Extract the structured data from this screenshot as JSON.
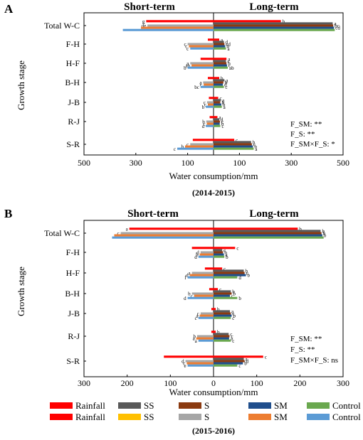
{
  "chart_data": [
    {
      "type": "bar",
      "panel_label": "A",
      "title": "(2014-2015)",
      "left_header": "Short-term",
      "right_header": "Long-term",
      "ylabel": "Growth stage",
      "xlabel": "Water consumption/mm",
      "x_tick_labels": [
        "500",
        "300",
        "100",
        "100",
        "300",
        "500"
      ],
      "xlim": [
        -500,
        500
      ],
      "categories": [
        "Total W-C",
        "F-H",
        "H-F",
        "B-H",
        "J-B",
        "R-J",
        "S-R"
      ],
      "side_order": [
        "Rainfall",
        "SS",
        "S",
        "SM",
        "Control"
      ],
      "series": [
        {
          "name": "Rainfall",
          "color": "#ff0000",
          "short": [
            260,
            22,
            50,
            22,
            18,
            15,
            80
          ],
          "long": [
            260,
            22,
            50,
            22,
            18,
            15,
            80
          ]
        },
        {
          "name": "SS",
          "short": [
            0,
            0,
            0,
            0,
            0,
            0,
            0
          ],
          "long": [
            460,
            40,
            48,
            42,
            28,
            22,
            145
          ]
        },
        {
          "name": "S",
          "short": [
            255,
            100,
            90,
            40,
            25,
            28,
            90
          ],
          "long": [
            462,
            42,
            50,
            38,
            26,
            25,
            148
          ]
        },
        {
          "name": "SM",
          "short": [
            280,
            95,
            85,
            38,
            22,
            26,
            110
          ],
          "long": [
            465,
            45,
            52,
            36,
            30,
            24,
            152
          ]
        },
        {
          "name": "Control",
          "short": [
            350,
            90,
            100,
            50,
            30,
            30,
            140
          ],
          "long": [
            468,
            48,
            55,
            40,
            32,
            26,
            155
          ]
        }
      ],
      "sig_letters": {
        "short": [
          [
            "g",
            "ef",
            "de",
            "",
            ""
          ],
          [
            "",
            "a",
            "c",
            "c",
            "c"
          ],
          [
            "",
            "b",
            "a",
            "ab",
            "b"
          ],
          [
            "",
            "b",
            "a",
            "c",
            "bc"
          ],
          [
            "",
            "a",
            "c",
            "c",
            "b"
          ],
          [
            "",
            "a",
            "b",
            "c",
            "d"
          ],
          [
            "",
            "e",
            "c",
            "b",
            "c"
          ]
        ],
        "long": [
          [
            "b",
            "a",
            "bc",
            "cd",
            ""
          ],
          [
            "a",
            "d",
            "cd",
            "b",
            "a"
          ],
          [
            "a",
            "c",
            "b",
            "c",
            "ab"
          ],
          [
            "b",
            "a",
            "b",
            "d",
            "c"
          ],
          [
            "c",
            "a",
            "b",
            "b",
            "a"
          ],
          [
            "a",
            "d",
            "c",
            "b",
            "c"
          ],
          [
            "c",
            "b",
            "c",
            "b",
            "a"
          ]
        ]
      },
      "stats": [
        "F_SM: **",
        "F_S: **",
        "F_SM×F_S: *"
      ]
    },
    {
      "type": "bar",
      "panel_label": "B",
      "title": "(2015-2016)",
      "left_header": "Short-term",
      "right_header": "Long-term",
      "ylabel": "Growth stage",
      "xlabel": "Water consumption/mm",
      "x_tick_labels": [
        "300",
        "200",
        "100",
        "0",
        "100",
        "200",
        "300"
      ],
      "xlim": [
        -300,
        300
      ],
      "categories": [
        "Total W-C",
        "F-H",
        "H-F",
        "B-H",
        "J-B",
        "R-J",
        "S-R"
      ],
      "side_order": [
        "Rainfall",
        "SS",
        "S",
        "SM",
        "Control"
      ],
      "series": [
        {
          "name": "Rainfall",
          "color": "#ff0000",
          "short": [
            195,
            50,
            20,
            10,
            5,
            5,
            115
          ],
          "long": [
            195,
            50,
            20,
            10,
            5,
            5,
            115
          ]
        },
        {
          "name": "SS",
          "short": [
            0,
            0,
            0,
            0,
            0,
            0,
            0
          ],
          "long": [
            248,
            20,
            70,
            40,
            38,
            35,
            70
          ]
        },
        {
          "name": "S",
          "short": [
            215,
            30,
            50,
            50,
            30,
            38,
            65
          ],
          "long": [
            250,
            22,
            72,
            42,
            40,
            37,
            72
          ]
        },
        {
          "name": "SM",
          "short": [
            230,
            32,
            55,
            45,
            32,
            40,
            62
          ],
          "long": [
            252,
            24,
            75,
            38,
            42,
            36,
            68
          ]
        },
        {
          "name": "Control",
          "short": [
            235,
            35,
            60,
            60,
            35,
            35,
            60
          ],
          "long": [
            255,
            25,
            55,
            55,
            40,
            40,
            55
          ]
        }
      ],
      "sig_letters": {
        "short": [
          [
            "a",
            "b",
            "c",
            "",
            ""
          ],
          [
            "",
            "c",
            "d",
            "b",
            "d"
          ],
          [
            "",
            "e",
            "a",
            "d",
            "f"
          ],
          [
            "",
            "a",
            "b",
            "c",
            "d"
          ],
          [
            "",
            "d",
            "c",
            "a",
            "c"
          ],
          [
            "",
            "c",
            "b",
            "a",
            "a"
          ],
          [
            "",
            "b",
            "d",
            "c",
            "e"
          ]
        ],
        "long": [
          [
            "b",
            "b",
            "b",
            "b",
            ""
          ],
          [
            "c",
            "c",
            "b",
            "a",
            "b"
          ],
          [
            "c",
            "b",
            "c",
            "b",
            "d"
          ],
          [
            "c",
            "b",
            "b",
            "c",
            "b"
          ],
          [
            "b",
            "a",
            "c",
            "b",
            "c"
          ],
          [
            "b",
            "c",
            "c",
            "a",
            "c"
          ],
          [
            "c",
            "a",
            "d",
            "b",
            "c"
          ]
        ]
      },
      "stats": [
        "F_SM: **",
        "F_S: **",
        "F_SM×F_S: ns"
      ]
    }
  ],
  "legend": {
    "row1": [
      {
        "name": "Rainfall",
        "color": "#ff0000"
      },
      {
        "name": "SS",
        "color": "#595959"
      },
      {
        "name": "S",
        "color": "#8b3a10"
      },
      {
        "name": "SM",
        "color": "#1f4e8c"
      },
      {
        "name": "Control",
        "color": "#6aa84f"
      }
    ],
    "row2": [
      {
        "name": "Rainfall",
        "color": "#ff0000"
      },
      {
        "name": "SS",
        "color": "#ffc000"
      },
      {
        "name": "S",
        "color": "#a6a6a6"
      },
      {
        "name": "SM",
        "color": "#ed7d31"
      },
      {
        "name": "Control",
        "color": "#5b9bd5"
      }
    ]
  },
  "colors": {
    "long": [
      "#ff0000",
      "#595959",
      "#8b3a10",
      "#1f4e8c",
      "#6aa84f"
    ],
    "short": [
      "#ff0000",
      "#ffc000",
      "#a6a6a6",
      "#ed7d31",
      "#5b9bd5"
    ]
  }
}
